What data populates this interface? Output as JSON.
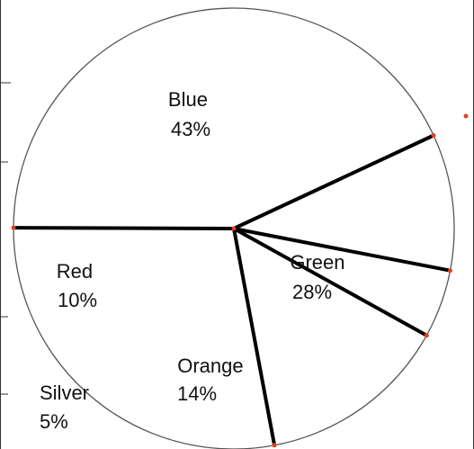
{
  "chart_data": {
    "type": "pie",
    "slices": [
      {
        "label": "Blue",
        "percent_label": "43%",
        "value": 43
      },
      {
        "label": "Green",
        "percent_label": "28%",
        "value": 28
      },
      {
        "label": "Orange",
        "percent_label": "14%",
        "value": 14
      },
      {
        "label": "Silver",
        "percent_label": "5%",
        "value": 5
      },
      {
        "label": "Red",
        "percent_label": "10%",
        "value": 10
      }
    ],
    "legend": "none",
    "colors": {
      "fill": "#ffffff",
      "outline": "#555555",
      "divider": "#000000",
      "marker": "#e8401c"
    }
  }
}
